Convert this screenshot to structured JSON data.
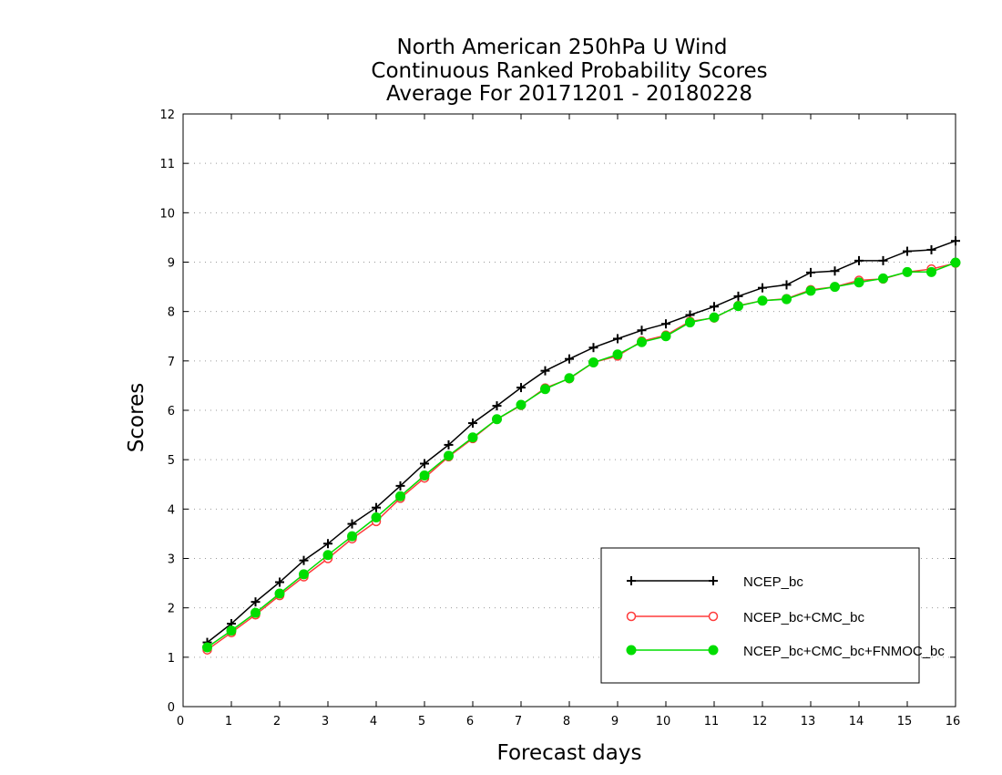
{
  "chart_data": {
    "type": "line",
    "title_lines": [
      "North American 250hPa U Wind",
      "Continuous Ranked Probability Scores",
      "Average For 20171201 - 20180228"
    ],
    "xlabel": "Forecast days",
    "ylabel": "Scores",
    "xlim": [
      0,
      16
    ],
    "ylim": [
      0,
      12
    ],
    "xticks": [
      0,
      1,
      2,
      3,
      4,
      5,
      6,
      7,
      8,
      9,
      10,
      11,
      12,
      13,
      14,
      15,
      16
    ],
    "yticks": [
      0,
      1,
      2,
      3,
      4,
      5,
      6,
      7,
      8,
      9,
      10,
      11,
      12
    ],
    "grid": "horizontal dotted",
    "legend_position": "bottom-right",
    "x": [
      0.5,
      1,
      1.5,
      2,
      2.5,
      3,
      3.5,
      4,
      4.5,
      5,
      5.5,
      6,
      6.5,
      7,
      7.5,
      8,
      8.5,
      9,
      9.5,
      10,
      10.5,
      11,
      11.5,
      12,
      12.5,
      13,
      13.5,
      14,
      14.5,
      15,
      15.5,
      16
    ],
    "series": [
      {
        "name": "NCEP_bc",
        "color": "#000000",
        "marker": "plus",
        "values": [
          1.3,
          1.68,
          2.12,
          2.52,
          2.96,
          3.3,
          3.7,
          4.03,
          4.47,
          4.92,
          5.3,
          5.74,
          6.09,
          6.46,
          6.8,
          7.04,
          7.27,
          7.45,
          7.62,
          7.75,
          7.93,
          8.1,
          8.31,
          8.48,
          8.54,
          8.79,
          8.82,
          9.03,
          9.03,
          9.22,
          9.25,
          9.43
        ]
      },
      {
        "name": "NCEP_bc+CMC_bc",
        "color": "#ff3b3b",
        "marker": "open-circle",
        "values": [
          1.15,
          1.5,
          1.86,
          2.25,
          2.63,
          3.0,
          3.4,
          3.75,
          4.22,
          4.63,
          5.06,
          5.43,
          5.82,
          6.1,
          6.45,
          6.64,
          6.97,
          7.1,
          7.4,
          7.52,
          7.8,
          7.87,
          8.12,
          8.22,
          8.26,
          8.44,
          8.5,
          8.63,
          8.66,
          8.8,
          8.86,
          8.98
        ]
      },
      {
        "name": "NCEP_bc+CMC_bc+FNMOC_bc",
        "color": "#00dd00",
        "marker": "filled-circle",
        "values": [
          1.2,
          1.54,
          1.9,
          2.29,
          2.68,
          3.07,
          3.45,
          3.83,
          4.26,
          4.68,
          5.08,
          5.45,
          5.82,
          6.11,
          6.43,
          6.65,
          6.97,
          7.13,
          7.38,
          7.5,
          7.78,
          7.88,
          8.11,
          8.22,
          8.25,
          8.42,
          8.5,
          8.59,
          8.67,
          8.8,
          8.8,
          8.99
        ]
      }
    ]
  }
}
